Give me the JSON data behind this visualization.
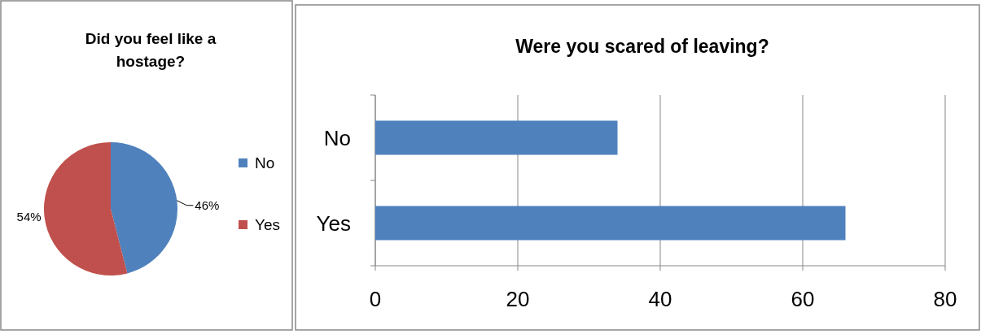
{
  "chart_data": [
    {
      "type": "pie",
      "title": "Did you feel like a hostage?",
      "categories": [
        "No",
        "Yes"
      ],
      "values": [
        46,
        54
      ],
      "colors": [
        "#4f81bd",
        "#c0504d"
      ],
      "value_labels": [
        "46%",
        "54%"
      ],
      "legend": "right"
    },
    {
      "type": "bar",
      "orientation": "horizontal",
      "title": "Were you scared of leaving?",
      "categories": [
        "No",
        "Yes"
      ],
      "values": [
        34,
        66
      ],
      "color": "#4f81bd",
      "xlim": [
        0,
        80
      ],
      "xticks": [
        0,
        20,
        40,
        60,
        80
      ],
      "grid": "x"
    }
  ]
}
